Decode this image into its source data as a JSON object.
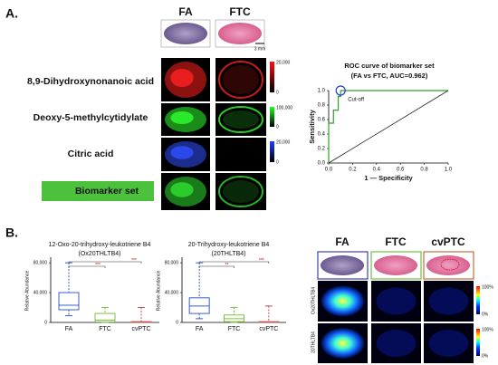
{
  "panel_a": {
    "label": "A.",
    "columns": [
      "FA",
      "FTC"
    ],
    "scale_bar": "3 mm",
    "rows": [
      {
        "name": "8,9-Dihydroxynonanoic acid",
        "scale_max": "20,000",
        "scale_min": "0"
      },
      {
        "name": "Deoxy-5-methylcytidylate",
        "scale_max": "100,000",
        "scale_min": "0"
      },
      {
        "name": "Citric acid",
        "scale_max": "20,000",
        "scale_min": "0"
      },
      {
        "name": "Biomarker set"
      }
    ]
  },
  "panel_b": {
    "label": "B.",
    "columns": [
      "FA",
      "FTC",
      "cvPTC"
    ],
    "rows": [
      {
        "name": "Ox20THLTB4",
        "scale_max": "100%",
        "scale_min": "0%"
      },
      {
        "name": "20THLTB4",
        "scale_max": "100%",
        "scale_min": "0%"
      }
    ]
  },
  "chart_data": [
    {
      "type": "line",
      "title": "ROC curve of biomarker set",
      "subtitle": "(FA vs FTC, AUC=0.962)",
      "x_label": "1 — Specificity",
      "y_label": "Sensitivity",
      "annotation": "Cut-off",
      "series": [
        {
          "color": "#2ca02c",
          "x": [
            0,
            0,
            0.04,
            0.04,
            0.08,
            0.08,
            0.1,
            0.1,
            1
          ],
          "values": [
            0,
            0.55,
            0.55,
            0.73,
            0.73,
            0.92,
            0.92,
            1,
            1
          ]
        },
        {
          "color": "#222222",
          "x": [
            0,
            1
          ],
          "values": [
            0,
            1
          ]
        }
      ],
      "xlim": [
        0,
        1
      ],
      "ylim": [
        0,
        1
      ],
      "xticks": [
        {
          "value": 0,
          "label": "0.0"
        },
        0.2,
        0.4,
        0.6,
        0.8,
        {
          "value": 1,
          "label": "1.0"
        }
      ],
      "yticks": [
        {
          "value": 0,
          "label": "0.0"
        },
        0.2,
        0.4,
        0.6,
        0.8,
        {
          "value": 1,
          "label": "1.0"
        }
      ]
    },
    {
      "type": "box",
      "title": "12-Oxo-20-trihydroxy-leukotriene B4",
      "subtitle": "(Ox20THLTB4)",
      "y_label": "Relative Abundance",
      "categories": [
        "FA",
        "FTC",
        "cvPTC"
      ],
      "colors": [
        "#3a5fcd",
        "#7dc242",
        "#c0504d"
      ],
      "boxes": [
        {
          "min": 9000,
          "q1": 17000,
          "median": 23000,
          "q3": 40000,
          "max": 80000
        },
        {
          "min": 0,
          "q1": 500,
          "median": 3000,
          "q3": 12000,
          "max": 20000
        },
        {
          "min": 0,
          "q1": 0,
          "median": 300,
          "q3": 1000,
          "max": 20000
        }
      ],
      "ylim": [
        0,
        85000
      ],
      "yticks": [
        0,
        {
          "value": 40000,
          "label": "40,000"
        },
        {
          "value": 80000,
          "label": "80,000"
        }
      ],
      "significance": [
        "***",
        "***"
      ]
    },
    {
      "type": "box",
      "title": "20-Trihydroxy-leukotriene B4",
      "subtitle": "(20THLTB4)",
      "y_label": "Relative Abundance",
      "categories": [
        "FA",
        "FTC",
        "cvPTC"
      ],
      "colors": [
        "#3a5fcd",
        "#7dc242",
        "#c0504d"
      ],
      "boxes": [
        {
          "min": 5000,
          "q1": 12000,
          "median": 22000,
          "q3": 33000,
          "max": 80000
        },
        {
          "min": 0,
          "q1": 1000,
          "median": 5000,
          "q3": 10000,
          "max": 20000
        },
        {
          "min": 0,
          "q1": 0,
          "median": 300,
          "q3": 1000,
          "max": 22000
        }
      ],
      "ylim": [
        0,
        85000
      ],
      "yticks": [
        0,
        {
          "value": 40000,
          "label": "40,000"
        },
        {
          "value": 80000,
          "label": "80,000"
        }
      ],
      "significance": [
        "**",
        "***"
      ]
    }
  ]
}
